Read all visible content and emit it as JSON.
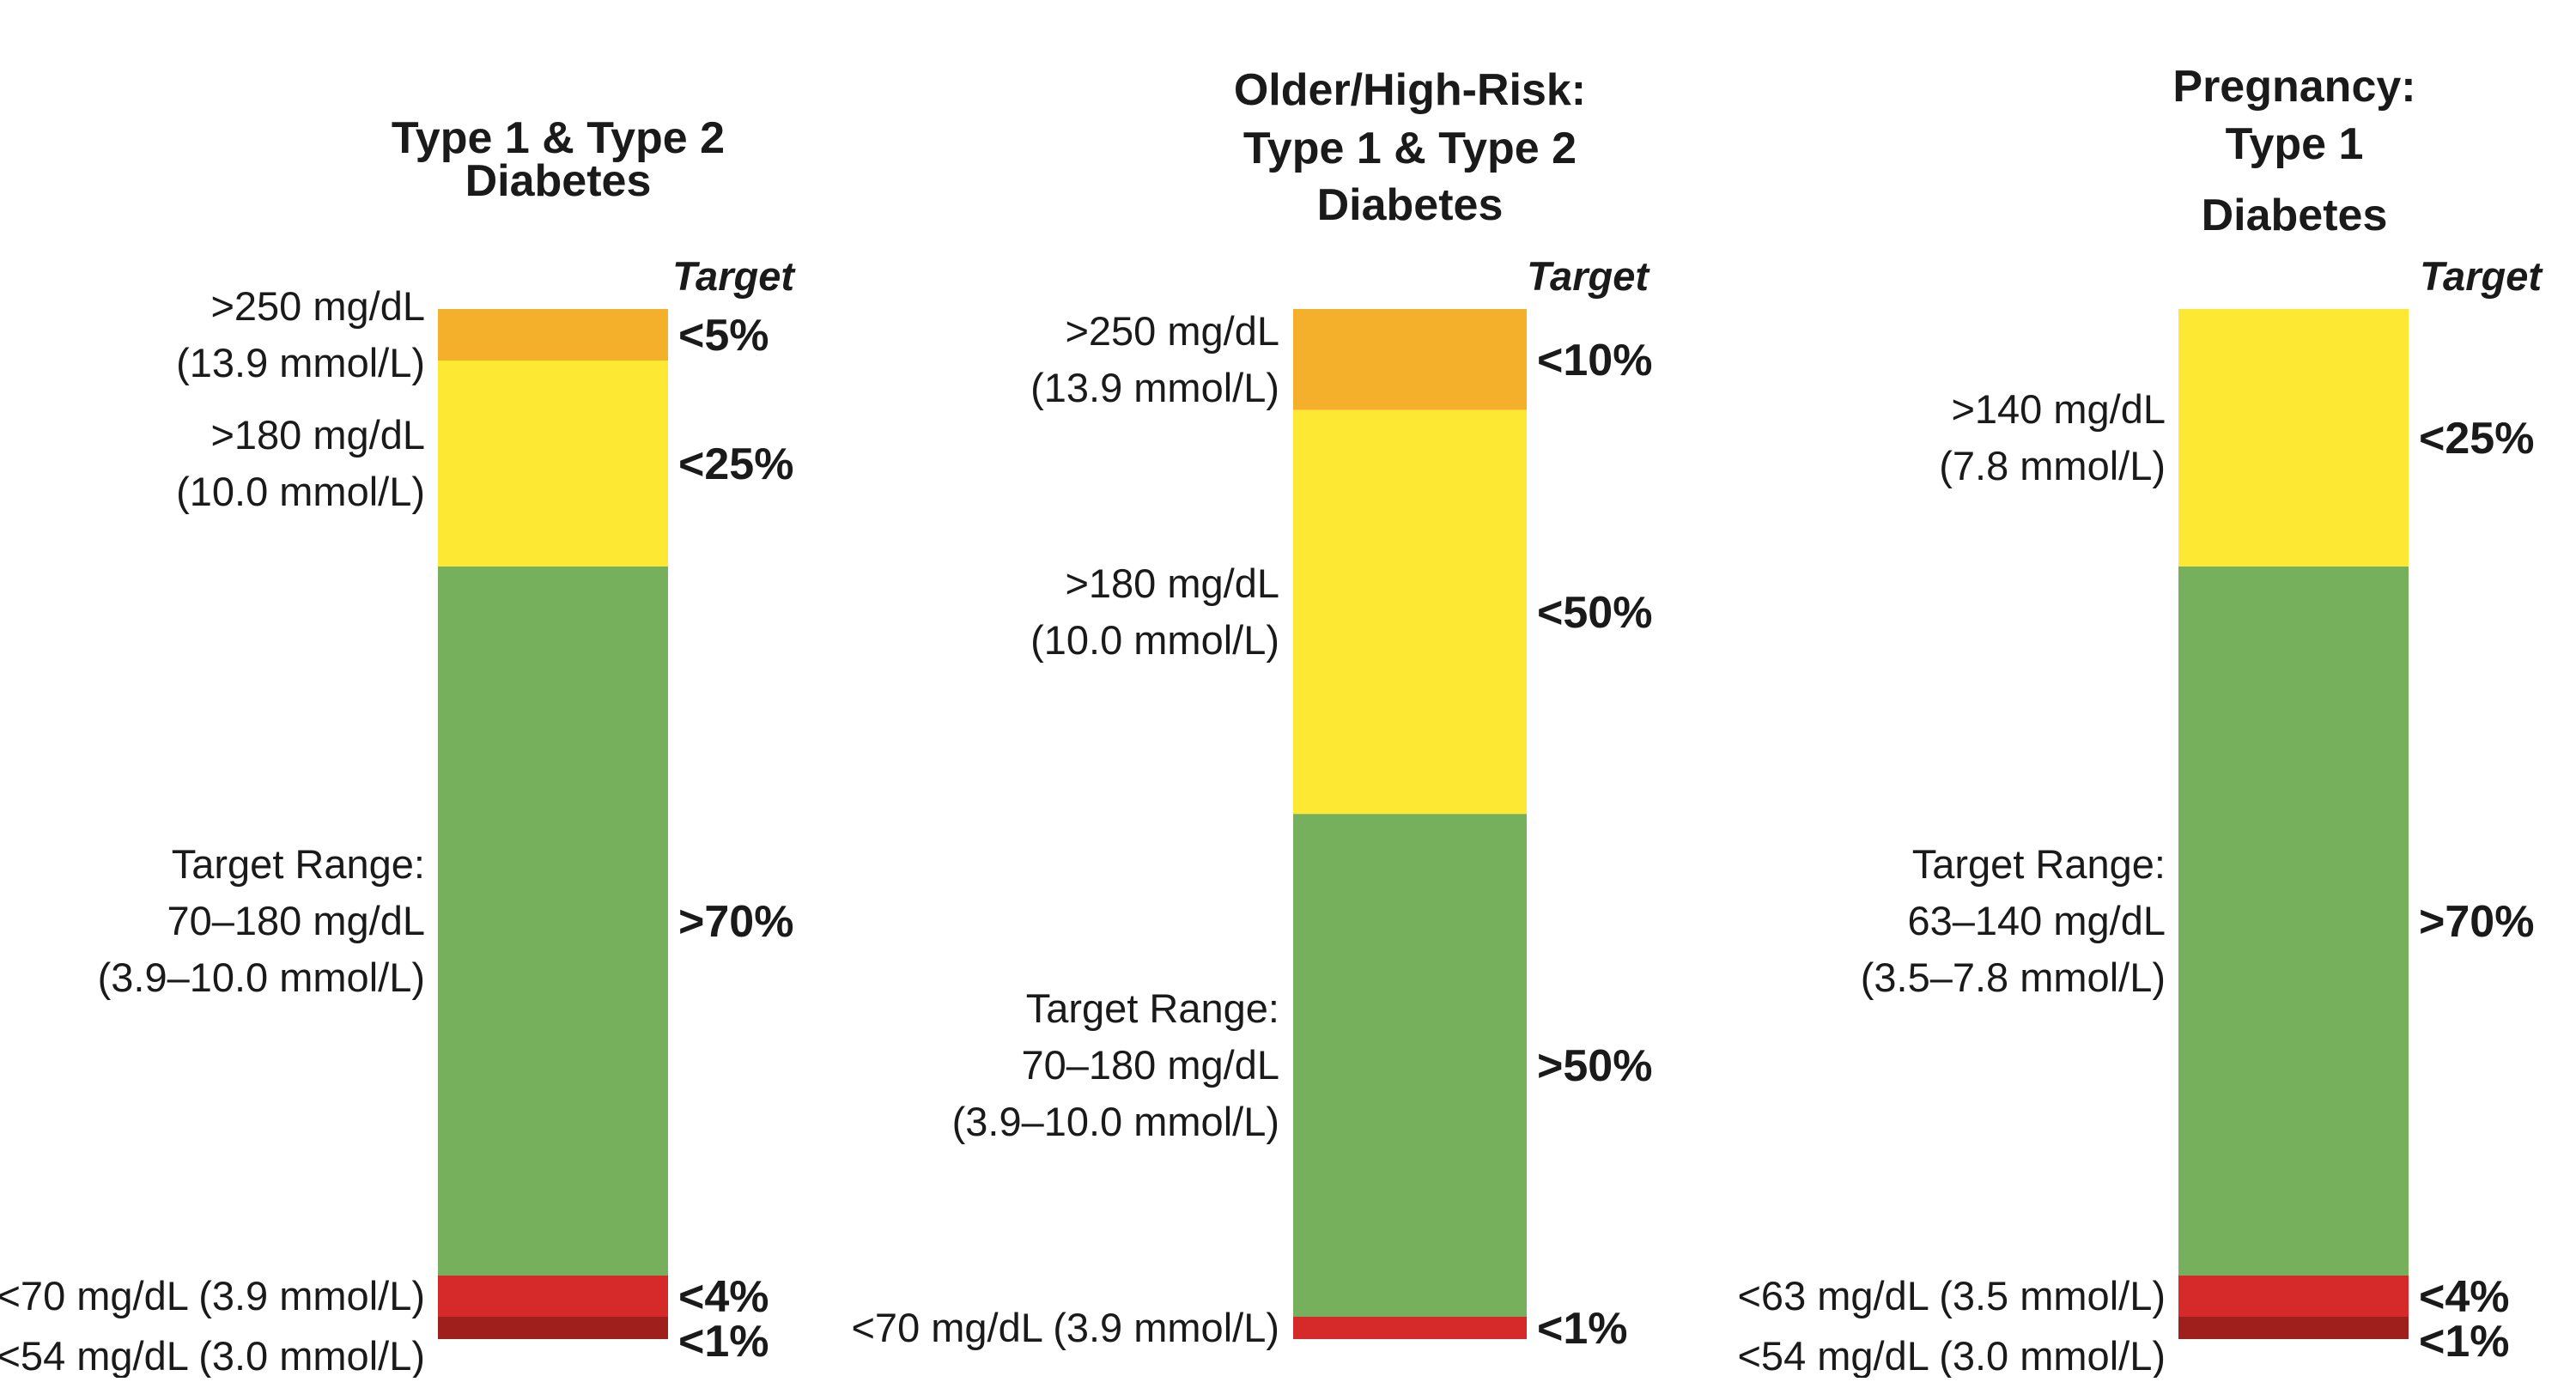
{
  "chart_data": [
    {
      "type": "bar",
      "stacked": true,
      "title_lines": [
        "Type 1   & Type 2",
        "Diabetes"
      ],
      "target_header": "Target",
      "segments": [
        {
          "name": "very_high",
          "color": "#f4b02b",
          "share": 5,
          "target": "<5%",
          "label_lines": [
            ">250 mg/dL",
            "(13.9 mmol/L)"
          ]
        },
        {
          "name": "high",
          "color": "#fde933",
          "share": 20,
          "target": "<25%",
          "label_lines": [
            ">180 mg/dL",
            "(10.0 mmol/L)"
          ]
        },
        {
          "name": "in_range",
          "color": "#76b05c",
          "share": 70,
          "target": ">70%",
          "label_lines": [
            "Target Range:",
            "70–180 mg/dL",
            "(3.9–10.0 mmol/L)"
          ]
        },
        {
          "name": "low",
          "color": "#d62a2a",
          "share": 4,
          "target": "<4%",
          "label_lines": [
            "<70 mg/dL (3.9 mmol/L)"
          ]
        },
        {
          "name": "very_low",
          "color": "#9e1f1b",
          "share": 1,
          "target": "<1%",
          "label_lines": [
            "<54 mg/dL (3.0 mmol/L)"
          ]
        }
      ]
    },
    {
      "type": "bar",
      "stacked": true,
      "title_lines": [
        "Older/High-Risk:",
        "Type 1 & Type 2",
        "Diabetes"
      ],
      "target_header": "Target",
      "segments": [
        {
          "name": "very_high",
          "color": "#f4b02b",
          "share": 10,
          "target": "<10%",
          "label_lines": [
            ">250 mg/dL",
            "(13.9 mmol/L)"
          ]
        },
        {
          "name": "high",
          "color": "#fde933",
          "share": 40,
          "target": "<50%",
          "label_lines": [
            ">180 mg/dL",
            "(10.0 mmol/L)"
          ]
        },
        {
          "name": "in_range",
          "color": "#76b05c",
          "share": 50,
          "target": ">50%",
          "label_lines": [
            "Target Range:",
            "70–180 mg/dL",
            "(3.9–10.0 mmol/L)"
          ]
        },
        {
          "name": "low",
          "color": "#d62a2a",
          "share": 2,
          "target": "<1%",
          "label_lines": [
            "<70 mg/dL (3.9 mmol/L)"
          ]
        }
      ]
    },
    {
      "type": "bar",
      "stacked": true,
      "title_lines": [
        "Pregnancy:",
        "Type 1",
        "Diabetes"
      ],
      "target_header": "Target",
      "segments": [
        {
          "name": "high",
          "color": "#fde933",
          "share": 25,
          "target": "<25%",
          "label_lines": [
            ">140 mg/dL",
            "(7.8 mmol/L)"
          ]
        },
        {
          "name": "in_range",
          "color": "#76b05c",
          "share": 70,
          "target": ">70%",
          "label_lines": [
            "Target Range:",
            "63–140 mg/dL",
            "(3.5–7.8 mmol/L)"
          ]
        },
        {
          "name": "low",
          "color": "#d62a2a",
          "share": 4,
          "target": "<4%",
          "label_lines": [
            "<63 mg/dL (3.5 mmol/L)"
          ]
        },
        {
          "name": "very_low",
          "color": "#9e1f1b",
          "share": 1,
          "target": "<1%",
          "label_lines": [
            "<54 mg/dL (3.0 mmol/L)"
          ]
        }
      ]
    }
  ]
}
